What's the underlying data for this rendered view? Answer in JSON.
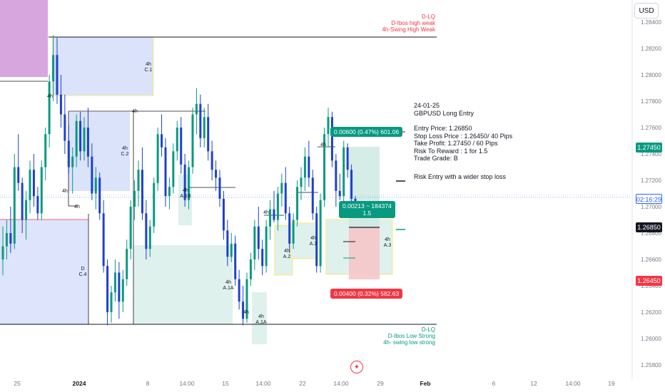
{
  "currency": "USD",
  "chart_data": {
    "type": "candlestick",
    "instrument": "GBPUSD",
    "yaxis": {
      "ticks": [
        "1.28400",
        "1.28200",
        "1.28000",
        "1.27800",
        "1.27600",
        "1.27400",
        "1.27200",
        "1.27000",
        "1.26800",
        "1.26600",
        "1.26400",
        "1.26200",
        "1.26000",
        "1.25800"
      ],
      "range": [
        1.2575,
        1.2852
      ]
    },
    "xaxis": {
      "ticks": [
        "25",
        "2024",
        "8",
        "14:00",
        "15",
        "14:00",
        "22",
        "14:00",
        "29",
        "Feb",
        "6",
        "12",
        "14:00",
        "19"
      ]
    },
    "price_tags": [
      {
        "label": "take_profit",
        "value": "1.27450",
        "bg": "#089981",
        "fg": "#ffffff"
      },
      {
        "label": "countdown",
        "value": "02:16:29",
        "bg": "#ffffff",
        "fg": "#2962ff"
      },
      {
        "label": "entry",
        "value": "1.26850",
        "bg": "#131722",
        "fg": "#ffffff"
      },
      {
        "label": "stop_loss",
        "value": "1.26450",
        "bg": "#f23645",
        "fg": "#ffffff"
      }
    ],
    "levels": {
      "high_weak": 1.2829,
      "low_strong": 1.26115,
      "entry": 1.2685,
      "take_profit": 1.2745,
      "stop_loss": 1.2645,
      "current": 1.27045
    },
    "candles": [
      [
        1.266,
        1.2685,
        1.2648,
        1.267
      ],
      [
        1.267,
        1.269,
        1.266,
        1.268
      ],
      [
        1.268,
        1.27,
        1.2665,
        1.2672
      ],
      [
        1.2672,
        1.274,
        1.2668,
        1.273
      ],
      [
        1.273,
        1.2755,
        1.2712,
        1.2718
      ],
      [
        1.2718,
        1.2722,
        1.268,
        1.269
      ],
      [
        1.269,
        1.2712,
        1.2675,
        1.2705
      ],
      [
        1.2705,
        1.2735,
        1.2695,
        1.2728
      ],
      [
        1.2728,
        1.274,
        1.27,
        1.2708
      ],
      [
        1.2708,
        1.2715,
        1.269,
        1.2695
      ],
      [
        1.2695,
        1.2735,
        1.269,
        1.273
      ],
      [
        1.273,
        1.276,
        1.272,
        1.2755
      ],
      [
        1.2755,
        1.28,
        1.2745,
        1.2795
      ],
      [
        1.2795,
        1.283,
        1.278,
        1.2815
      ],
      [
        1.2815,
        1.2828,
        1.2778,
        1.2785
      ],
      [
        1.2785,
        1.28,
        1.276,
        1.277
      ],
      [
        1.277,
        1.2785,
        1.274,
        1.275
      ],
      [
        1.275,
        1.2762,
        1.2725,
        1.273
      ],
      [
        1.273,
        1.2745,
        1.271,
        1.2738
      ],
      [
        1.2738,
        1.277,
        1.273,
        1.2765
      ],
      [
        1.2765,
        1.2772,
        1.2735,
        1.2742
      ],
      [
        1.2742,
        1.2768,
        1.2735,
        1.276
      ],
      [
        1.276,
        1.2775,
        1.273,
        1.2738
      ],
      [
        1.2738,
        1.2748,
        1.2705,
        1.271
      ],
      [
        1.271,
        1.273,
        1.2698,
        1.2722
      ],
      [
        1.2722,
        1.2726,
        1.269,
        1.2695
      ],
      [
        1.2695,
        1.2705,
        1.265,
        1.2655
      ],
      [
        1.2655,
        1.266,
        1.261,
        1.262
      ],
      [
        1.262,
        1.264,
        1.2612,
        1.2635
      ],
      [
        1.2635,
        1.266,
        1.2628,
        1.265
      ],
      [
        1.265,
        1.2658,
        1.2615,
        1.2628
      ],
      [
        1.2628,
        1.2652,
        1.262,
        1.2645
      ],
      [
        1.2645,
        1.2675,
        1.264,
        1.2668
      ],
      [
        1.2668,
        1.2705,
        1.266,
        1.27
      ],
      [
        1.27,
        1.272,
        1.269,
        1.2712
      ],
      [
        1.2712,
        1.2735,
        1.27,
        1.2728
      ],
      [
        1.2728,
        1.2745,
        1.269,
        1.2695
      ],
      [
        1.2695,
        1.2705,
        1.266,
        1.2668
      ],
      [
        1.2668,
        1.269,
        1.2662,
        1.2685
      ],
      [
        1.2685,
        1.2722,
        1.268,
        1.2718
      ],
      [
        1.2718,
        1.276,
        1.2712,
        1.2755
      ],
      [
        1.2755,
        1.277,
        1.2738,
        1.2745
      ],
      [
        1.2745,
        1.2752,
        1.27,
        1.2708
      ],
      [
        1.2708,
        1.2722,
        1.2698,
        1.2715
      ],
      [
        1.2715,
        1.2748,
        1.271,
        1.2742
      ],
      [
        1.2742,
        1.2765,
        1.2735,
        1.276
      ],
      [
        1.276,
        1.2768,
        1.2725,
        1.2732
      ],
      [
        1.2732,
        1.274,
        1.27,
        1.2705
      ],
      [
        1.2705,
        1.2735,
        1.2698,
        1.273
      ],
      [
        1.273,
        1.2775,
        1.2725,
        1.277
      ],
      [
        1.277,
        1.279,
        1.2755,
        1.2778
      ],
      [
        1.2778,
        1.2785,
        1.2745,
        1.2752
      ],
      [
        1.2752,
        1.2775,
        1.2745,
        1.2768
      ],
      [
        1.2768,
        1.2778,
        1.2735,
        1.2742
      ],
      [
        1.2742,
        1.275,
        1.272,
        1.2728
      ],
      [
        1.2728,
        1.2735,
        1.2712,
        1.2722
      ],
      [
        1.2722,
        1.2728,
        1.27,
        1.2706
      ],
      [
        1.2706,
        1.2712,
        1.2675,
        1.2682
      ],
      [
        1.2682,
        1.269,
        1.2655,
        1.2662
      ],
      [
        1.2662,
        1.268,
        1.2658,
        1.2672
      ],
      [
        1.2672,
        1.2678,
        1.264,
        1.2645
      ],
      [
        1.2645,
        1.2652,
        1.2622,
        1.2628
      ],
      [
        1.2628,
        1.264,
        1.261,
        1.2615
      ],
      [
        1.2615,
        1.265,
        1.2612,
        1.2645
      ],
      [
        1.2645,
        1.2665,
        1.264,
        1.266
      ],
      [
        1.266,
        1.269,
        1.2652,
        1.2685
      ],
      [
        1.2685,
        1.27,
        1.266,
        1.2668
      ],
      [
        1.2668,
        1.2675,
        1.2648,
        1.2655
      ],
      [
        1.2655,
        1.269,
        1.265,
        1.2685
      ],
      [
        1.2685,
        1.2705,
        1.2675,
        1.2698
      ],
      [
        1.2698,
        1.2712,
        1.2688,
        1.269
      ],
      [
        1.269,
        1.2715,
        1.2682,
        1.271
      ],
      [
        1.271,
        1.2725,
        1.27,
        1.2718
      ],
      [
        1.2718,
        1.273,
        1.269,
        1.2695
      ],
      [
        1.2695,
        1.27,
        1.2665,
        1.2672
      ],
      [
        1.2672,
        1.2695,
        1.2668,
        1.269
      ],
      [
        1.269,
        1.272,
        1.2685,
        1.2715
      ],
      [
        1.2715,
        1.273,
        1.2705,
        1.2722
      ],
      [
        1.2722,
        1.2745,
        1.2712,
        1.2738
      ],
      [
        1.2738,
        1.275,
        1.2715,
        1.2722
      ],
      [
        1.2722,
        1.2728,
        1.269,
        1.2695
      ],
      [
        1.2695,
        1.27,
        1.265,
        1.2655
      ],
      [
        1.2655,
        1.271,
        1.265,
        1.2705
      ],
      [
        1.2705,
        1.276,
        1.27,
        1.2755
      ],
      [
        1.2755,
        1.2775,
        1.2745,
        1.2768
      ],
      [
        1.2768,
        1.2772,
        1.273,
        1.2735
      ],
      [
        1.2735,
        1.274,
        1.27,
        1.2712
      ],
      [
        1.2712,
        1.2725,
        1.2705,
        1.2708
      ],
      [
        1.2708,
        1.275,
        1.2704,
        1.2745
      ],
      [
        1.2745,
        1.2748,
        1.2722,
        1.2728
      ],
      [
        1.2728,
        1.2732,
        1.2702,
        1.2706
      ],
      [
        1.2706,
        1.2708,
        1.27,
        1.2704
      ]
    ]
  },
  "zones": {
    "c1": "4h\nC.1",
    "c2": "4h\nC.2",
    "c4": "D\nC.4",
    "a1b": "4h\nA.1B",
    "a1a_1": "4h\nA.1A",
    "a1a_2": "4h\nA.1A",
    "a2": "4h\nA.2",
    "a3_1": "4h\nA.3",
    "a3_2": "4h\nA.3",
    "h_4h_1": "4h",
    "h_4h_2": "4h",
    "h_4h_3": "4h",
    "h_4h_4": "4h",
    "h_4h_5": "4h"
  },
  "labels": {
    "top_lines": [
      "D-LQ",
      "D-Ibos high weak",
      "4h-Swing High Weak"
    ],
    "bottom_lines": [
      "D-LQ",
      "D-Ibos Low Strong",
      "4h- swing low strong"
    ],
    "tp_tag": "0.00600 (0.47%) 601.06",
    "sl_tag": "0.00400 (0.32%) 582.63",
    "pos_tag_1": "0.00213 ~ 184374",
    "pos_tag_2": "1.5"
  },
  "trade_note": {
    "date": "24-01-25",
    "title": "GBPUSD Long Entry",
    "entry": "Entry Price: 1.26850",
    "stop": "Stop Loss Price : 1.26450/ 40 Pips",
    "tp": "Take Profit: 1.27450 / 60 Pips",
    "rr": "Risk To Reward : 1 for 1.5",
    "grade": "Trade Grade:  B",
    "risk": "Risk Entry with a wider stop loss"
  },
  "colors": {
    "up": "#089981",
    "down": "#1e3fd1",
    "premium": "#d6a1df",
    "discount": "#dbe3fb",
    "green_zone": "#dff1ec",
    "yellow_border": "#f7e97a",
    "red": "#f23645",
    "green": "#089981"
  }
}
